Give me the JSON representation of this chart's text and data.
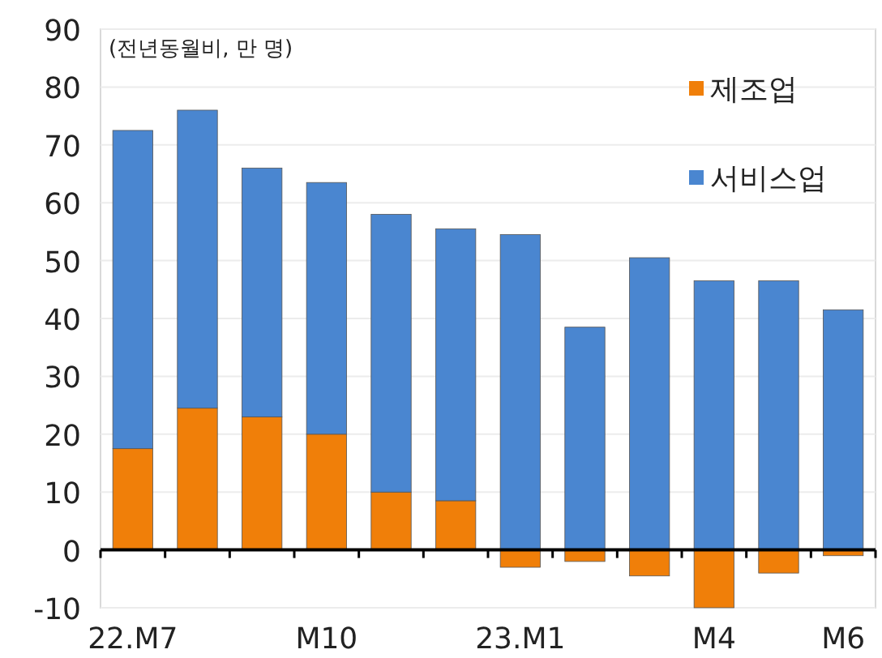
{
  "chart_data": {
    "type": "bar",
    "stacked": true,
    "annotations": [
      "(전년동월비, 만 명)"
    ],
    "categories": [
      "22.M7",
      null,
      null,
      "M10",
      null,
      null,
      "23.M1",
      null,
      null,
      "M4",
      null,
      "M6"
    ],
    "series": [
      {
        "name": "제조업",
        "color": "#f07f09",
        "values": [
          17.5,
          24.5,
          23,
          20,
          10,
          8.5,
          -3,
          -2,
          -4.5,
          -10,
          -4,
          -1
        ]
      },
      {
        "name": "서비스업",
        "color": "#4a86d0",
        "values": [
          55,
          51.5,
          43,
          43.5,
          48,
          47,
          54.5,
          38.5,
          50.5,
          46.5,
          46.5,
          41.5
        ]
      }
    ],
    "ylim": [
      -10,
      90
    ],
    "yticks": [
      -10,
      0,
      10,
      20,
      30,
      40,
      50,
      60,
      70,
      80,
      90
    ],
    "grid": "y",
    "legend": "top right"
  }
}
